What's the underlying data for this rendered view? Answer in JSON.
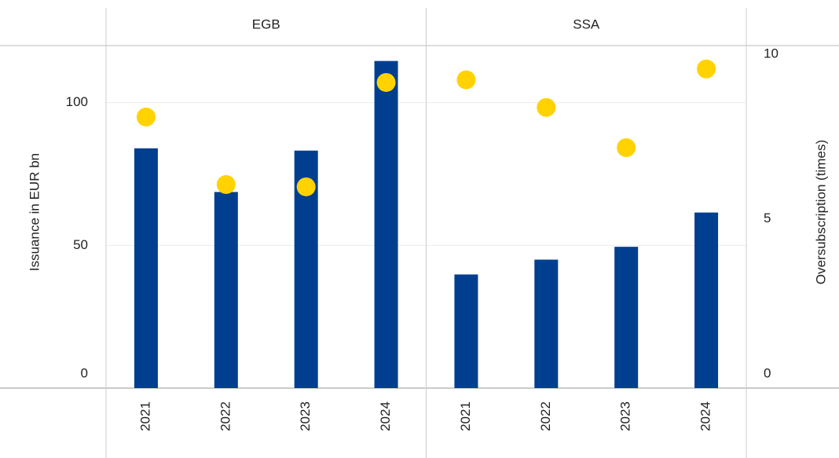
{
  "chart_data": {
    "type": "bar",
    "ylabel": "Issuance in EUR bn",
    "y2label": "Oversubscription (times)",
    "ylim": [
      0,
      120
    ],
    "yticks": [
      0,
      50,
      100
    ],
    "y2lim": [
      0,
      10.4
    ],
    "y2ticks": [
      0,
      5,
      10
    ],
    "bar_color": "#003f8f",
    "dot_color": "#ffd200",
    "grid": true,
    "panels": [
      {
        "title": "EGB",
        "categories": [
          "2021",
          "2022",
          "2023",
          "2024"
        ],
        "values": [
          84,
          68.7,
          83.2,
          114.6
        ],
        "y2_values": [
          8.23,
          6.18,
          6.11,
          9.28
        ]
      },
      {
        "title": "SSA",
        "categories": [
          "2021",
          "2022",
          "2023",
          "2024"
        ],
        "values": [
          39.8,
          45,
          49.5,
          61.5
        ],
        "y2_values": [
          9.36,
          8.52,
          7.3,
          9.69
        ]
      }
    ]
  }
}
